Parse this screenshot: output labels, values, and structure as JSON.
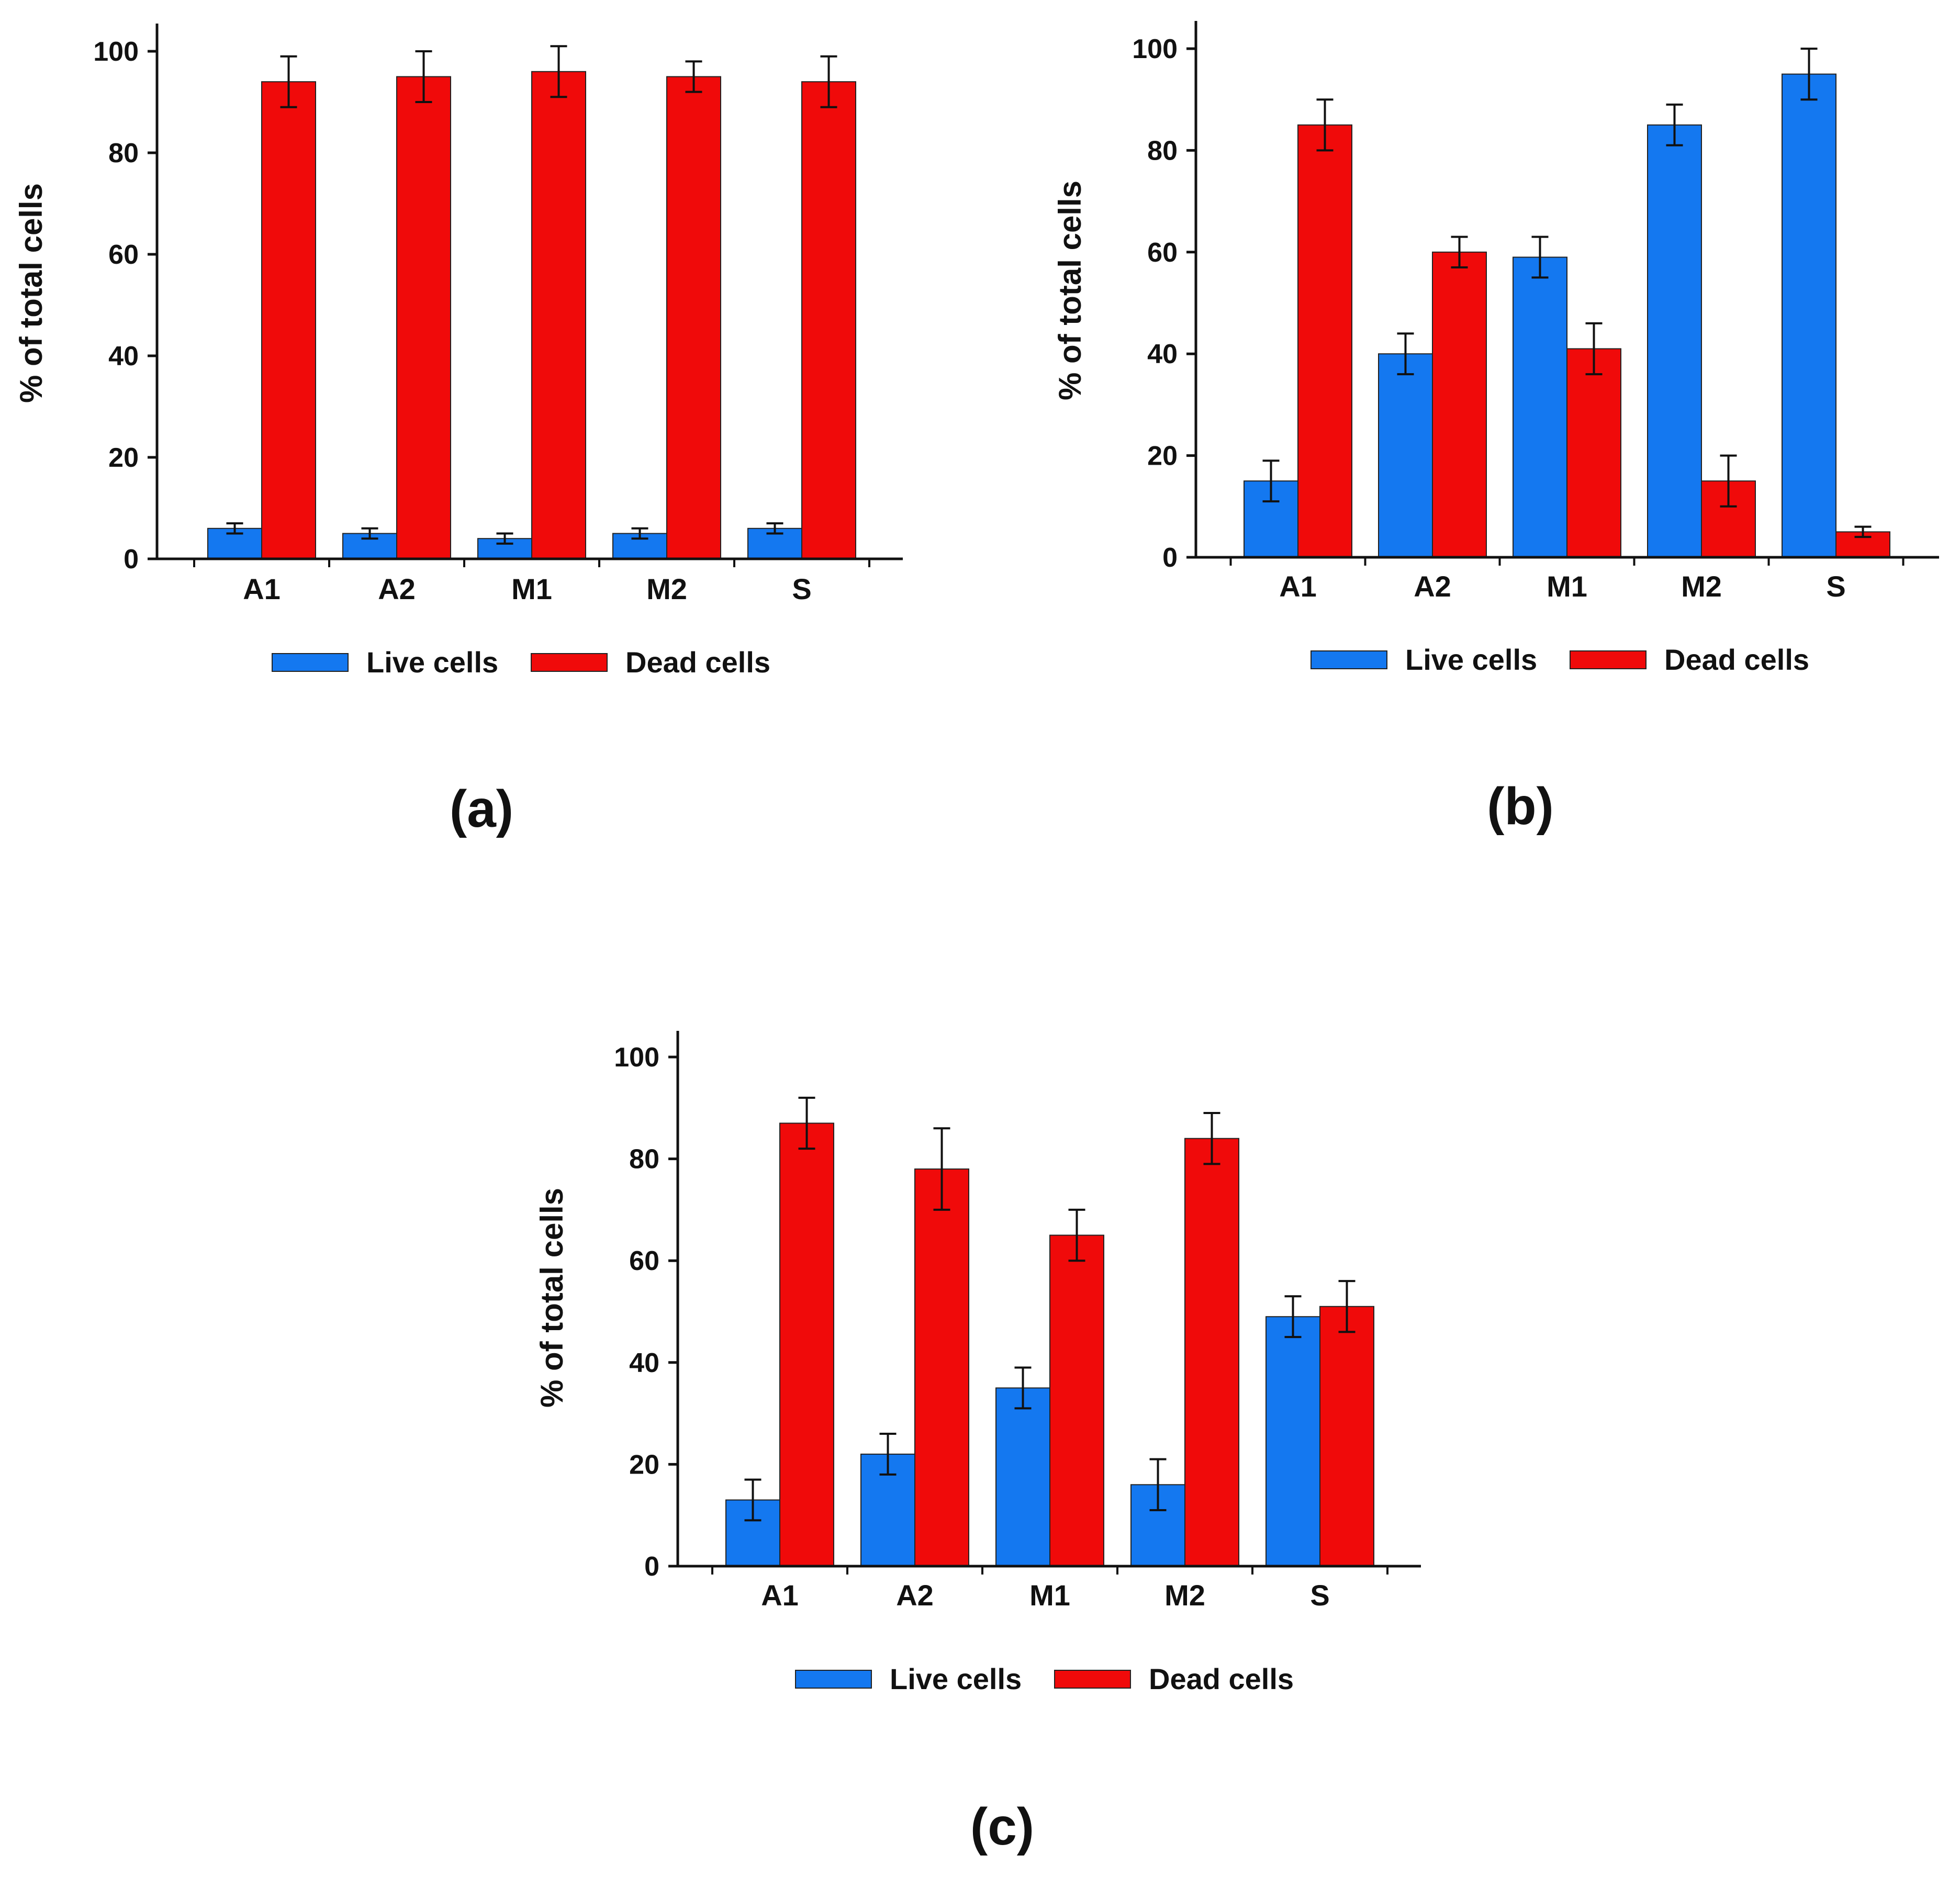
{
  "colors": {
    "live": "#1478f0",
    "dead": "#f00a0a",
    "axis": "#111111",
    "edge": "#222222"
  },
  "chart_data": [
    {
      "type": "bar",
      "panel": "(a)",
      "categories": [
        "A1",
        "A2",
        "M1",
        "M2",
        "S"
      ],
      "ylabel": "% of total cells",
      "xlabel": "",
      "ylim": [
        0,
        100
      ],
      "yticks": [
        "0",
        "20",
        "40",
        "60",
        "80",
        "100"
      ],
      "legend": "bottom-center",
      "grid": false,
      "series": [
        {
          "name": "Live cells",
          "values": [
            6,
            5,
            4,
            5,
            6
          ],
          "errors": [
            1,
            1,
            1,
            1,
            1
          ]
        },
        {
          "name": "Dead cells",
          "values": [
            94,
            95,
            96,
            95,
            94
          ],
          "errors": [
            5,
            5,
            5,
            3,
            5
          ]
        }
      ]
    },
    {
      "type": "bar",
      "panel": "(b)",
      "categories": [
        "A1",
        "A2",
        "M1",
        "M2",
        "S"
      ],
      "ylabel": "% of total cells",
      "xlabel": "",
      "ylim": [
        0,
        100
      ],
      "yticks": [
        "0",
        "20",
        "40",
        "60",
        "80",
        "100"
      ],
      "legend": "bottom-center",
      "grid": false,
      "series": [
        {
          "name": "Live cells",
          "values": [
            15,
            40,
            59,
            85,
            95
          ],
          "errors": [
            4,
            4,
            4,
            4,
            5
          ]
        },
        {
          "name": "Dead cells",
          "values": [
            85,
            60,
            41,
            15,
            5
          ],
          "errors": [
            5,
            3,
            5,
            5,
            1
          ]
        }
      ]
    },
    {
      "type": "bar",
      "panel": "(c)",
      "categories": [
        "A1",
        "A2",
        "M1",
        "M2",
        "S"
      ],
      "ylabel": "% of total cells",
      "xlabel": "",
      "ylim": [
        0,
        100
      ],
      "yticks": [
        "0",
        "20",
        "40",
        "60",
        "80",
        "100"
      ],
      "legend": "bottom-center",
      "grid": false,
      "series": [
        {
          "name": "Live cells",
          "values": [
            13,
            22,
            35,
            16,
            49
          ],
          "errors": [
            4,
            4,
            4,
            5,
            4
          ]
        },
        {
          "name": "Dead cells",
          "values": [
            87,
            78,
            65,
            84,
            51
          ],
          "errors": [
            5,
            8,
            5,
            5,
            5
          ]
        }
      ]
    }
  ]
}
